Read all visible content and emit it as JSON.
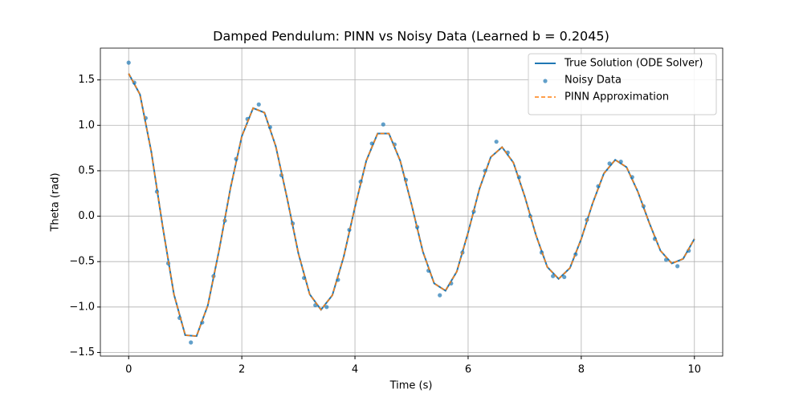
{
  "chart_data": {
    "type": "line",
    "title": "Damped Pendulum: PINN vs Noisy Data (Learned b = 0.2045)",
    "x_label": "Time (s)",
    "y_label": "Theta (rad)",
    "xlim": [
      -0.5,
      10.5
    ],
    "ylim": [
      -1.54,
      1.85
    ],
    "xticks": [
      0,
      2,
      4,
      6,
      8,
      10
    ],
    "yticks": [
      {
        "value": -1.5,
        "label": "−1.5"
      },
      {
        "value": -1,
        "label": "−1.0"
      },
      {
        "value": -0.5,
        "label": "−0.5"
      },
      {
        "value": 0,
        "label": "0.0"
      },
      {
        "value": 0.5,
        "label": "0.5"
      },
      {
        "value": 1,
        "label": "1.0"
      },
      {
        "value": 1.5,
        "label": "1.5"
      }
    ],
    "grid": true,
    "legend": "upper right",
    "series": [
      {
        "name": "True Solution (ODE Solver)",
        "color": "#1f77b4",
        "style": "solid",
        "x": [
          0,
          0.2,
          0.4,
          0.6,
          0.8,
          1.0,
          1.2,
          1.4,
          1.6,
          1.8,
          2.0,
          2.2,
          2.4,
          2.6,
          2.8,
          3.0,
          3.2,
          3.4,
          3.6,
          3.8,
          4.0,
          4.2,
          4.4,
          4.6,
          4.8,
          5.0,
          5.2,
          5.4,
          5.6,
          5.8,
          6.0,
          6.2,
          6.4,
          6.6,
          6.8,
          7.0,
          7.2,
          7.4,
          7.6,
          7.8,
          8.0,
          8.2,
          8.4,
          8.6,
          8.8,
          9.0,
          9.2,
          9.4,
          9.6,
          9.8,
          10.0
        ],
        "values": [
          1.57,
          1.34,
          0.71,
          -0.11,
          -0.86,
          -1.31,
          -1.32,
          -0.98,
          -0.37,
          0.31,
          0.88,
          1.19,
          1.14,
          0.77,
          0.2,
          -0.41,
          -0.86,
          -1.03,
          -0.87,
          -0.45,
          0.1,
          0.61,
          0.91,
          0.91,
          0.61,
          0.13,
          -0.39,
          -0.74,
          -0.82,
          -0.61,
          -0.18,
          0.3,
          0.65,
          0.76,
          0.59,
          0.22,
          -0.21,
          -0.56,
          -0.69,
          -0.57,
          -0.25,
          0.14,
          0.47,
          0.62,
          0.54,
          0.27,
          -0.07,
          -0.38,
          -0.52,
          -0.47,
          -0.25
        ]
      },
      {
        "name": "Noisy Data",
        "color": "#1f77b4",
        "style": "scatter",
        "x": [
          0,
          0.1,
          0.3,
          0.5,
          0.7,
          0.9,
          1.1,
          1.3,
          1.5,
          1.7,
          1.9,
          2.1,
          2.3,
          2.5,
          2.7,
          2.9,
          3.1,
          3.3,
          3.5,
          3.7,
          3.9,
          4.1,
          4.3,
          4.5,
          4.7,
          4.9,
          5.1,
          5.3,
          5.5,
          5.7,
          5.9,
          6.1,
          6.3,
          6.5,
          6.7,
          6.9,
          7.1,
          7.3,
          7.5,
          7.7,
          7.9,
          8.1,
          8.3,
          8.5,
          8.7,
          8.9,
          9.1,
          9.3,
          9.5,
          9.7,
          9.9
        ],
        "values": [
          1.69,
          1.47,
          1.08,
          0.27,
          -0.52,
          -1.12,
          -1.39,
          -1.17,
          -0.66,
          -0.05,
          0.63,
          1.07,
          1.23,
          0.98,
          0.45,
          -0.08,
          -0.68,
          -0.98,
          -1.0,
          -0.7,
          -0.15,
          0.38,
          0.8,
          1.01,
          0.79,
          0.4,
          -0.12,
          -0.6,
          -0.87,
          -0.74,
          -0.4,
          0.05,
          0.5,
          0.82,
          0.7,
          0.43,
          0.0,
          -0.4,
          -0.66,
          -0.67,
          -0.42,
          -0.04,
          0.33,
          0.58,
          0.6,
          0.43,
          0.11,
          -0.25,
          -0.48,
          -0.55,
          -0.38
        ]
      },
      {
        "name": "PINN Approximation",
        "color": "#ff7f0e",
        "style": "dashed",
        "x": [
          0,
          0.2,
          0.4,
          0.6,
          0.8,
          1.0,
          1.2,
          1.4,
          1.6,
          1.8,
          2.0,
          2.2,
          2.4,
          2.6,
          2.8,
          3.0,
          3.2,
          3.4,
          3.6,
          3.8,
          4.0,
          4.2,
          4.4,
          4.6,
          4.8,
          5.0,
          5.2,
          5.4,
          5.6,
          5.8,
          6.0,
          6.2,
          6.4,
          6.6,
          6.8,
          7.0,
          7.2,
          7.4,
          7.6,
          7.8,
          8.0,
          8.2,
          8.4,
          8.6,
          8.8,
          9.0,
          9.2,
          9.4,
          9.6,
          9.8,
          10.0
        ],
        "values": [
          1.57,
          1.34,
          0.71,
          -0.11,
          -0.86,
          -1.31,
          -1.32,
          -0.98,
          -0.37,
          0.31,
          0.88,
          1.19,
          1.14,
          0.77,
          0.2,
          -0.41,
          -0.86,
          -1.03,
          -0.87,
          -0.45,
          0.1,
          0.61,
          0.91,
          0.91,
          0.61,
          0.13,
          -0.39,
          -0.74,
          -0.82,
          -0.61,
          -0.18,
          0.3,
          0.65,
          0.76,
          0.59,
          0.22,
          -0.21,
          -0.56,
          -0.69,
          -0.57,
          -0.25,
          0.14,
          0.47,
          0.62,
          0.54,
          0.27,
          -0.07,
          -0.38,
          -0.52,
          -0.47,
          -0.25
        ]
      }
    ]
  }
}
